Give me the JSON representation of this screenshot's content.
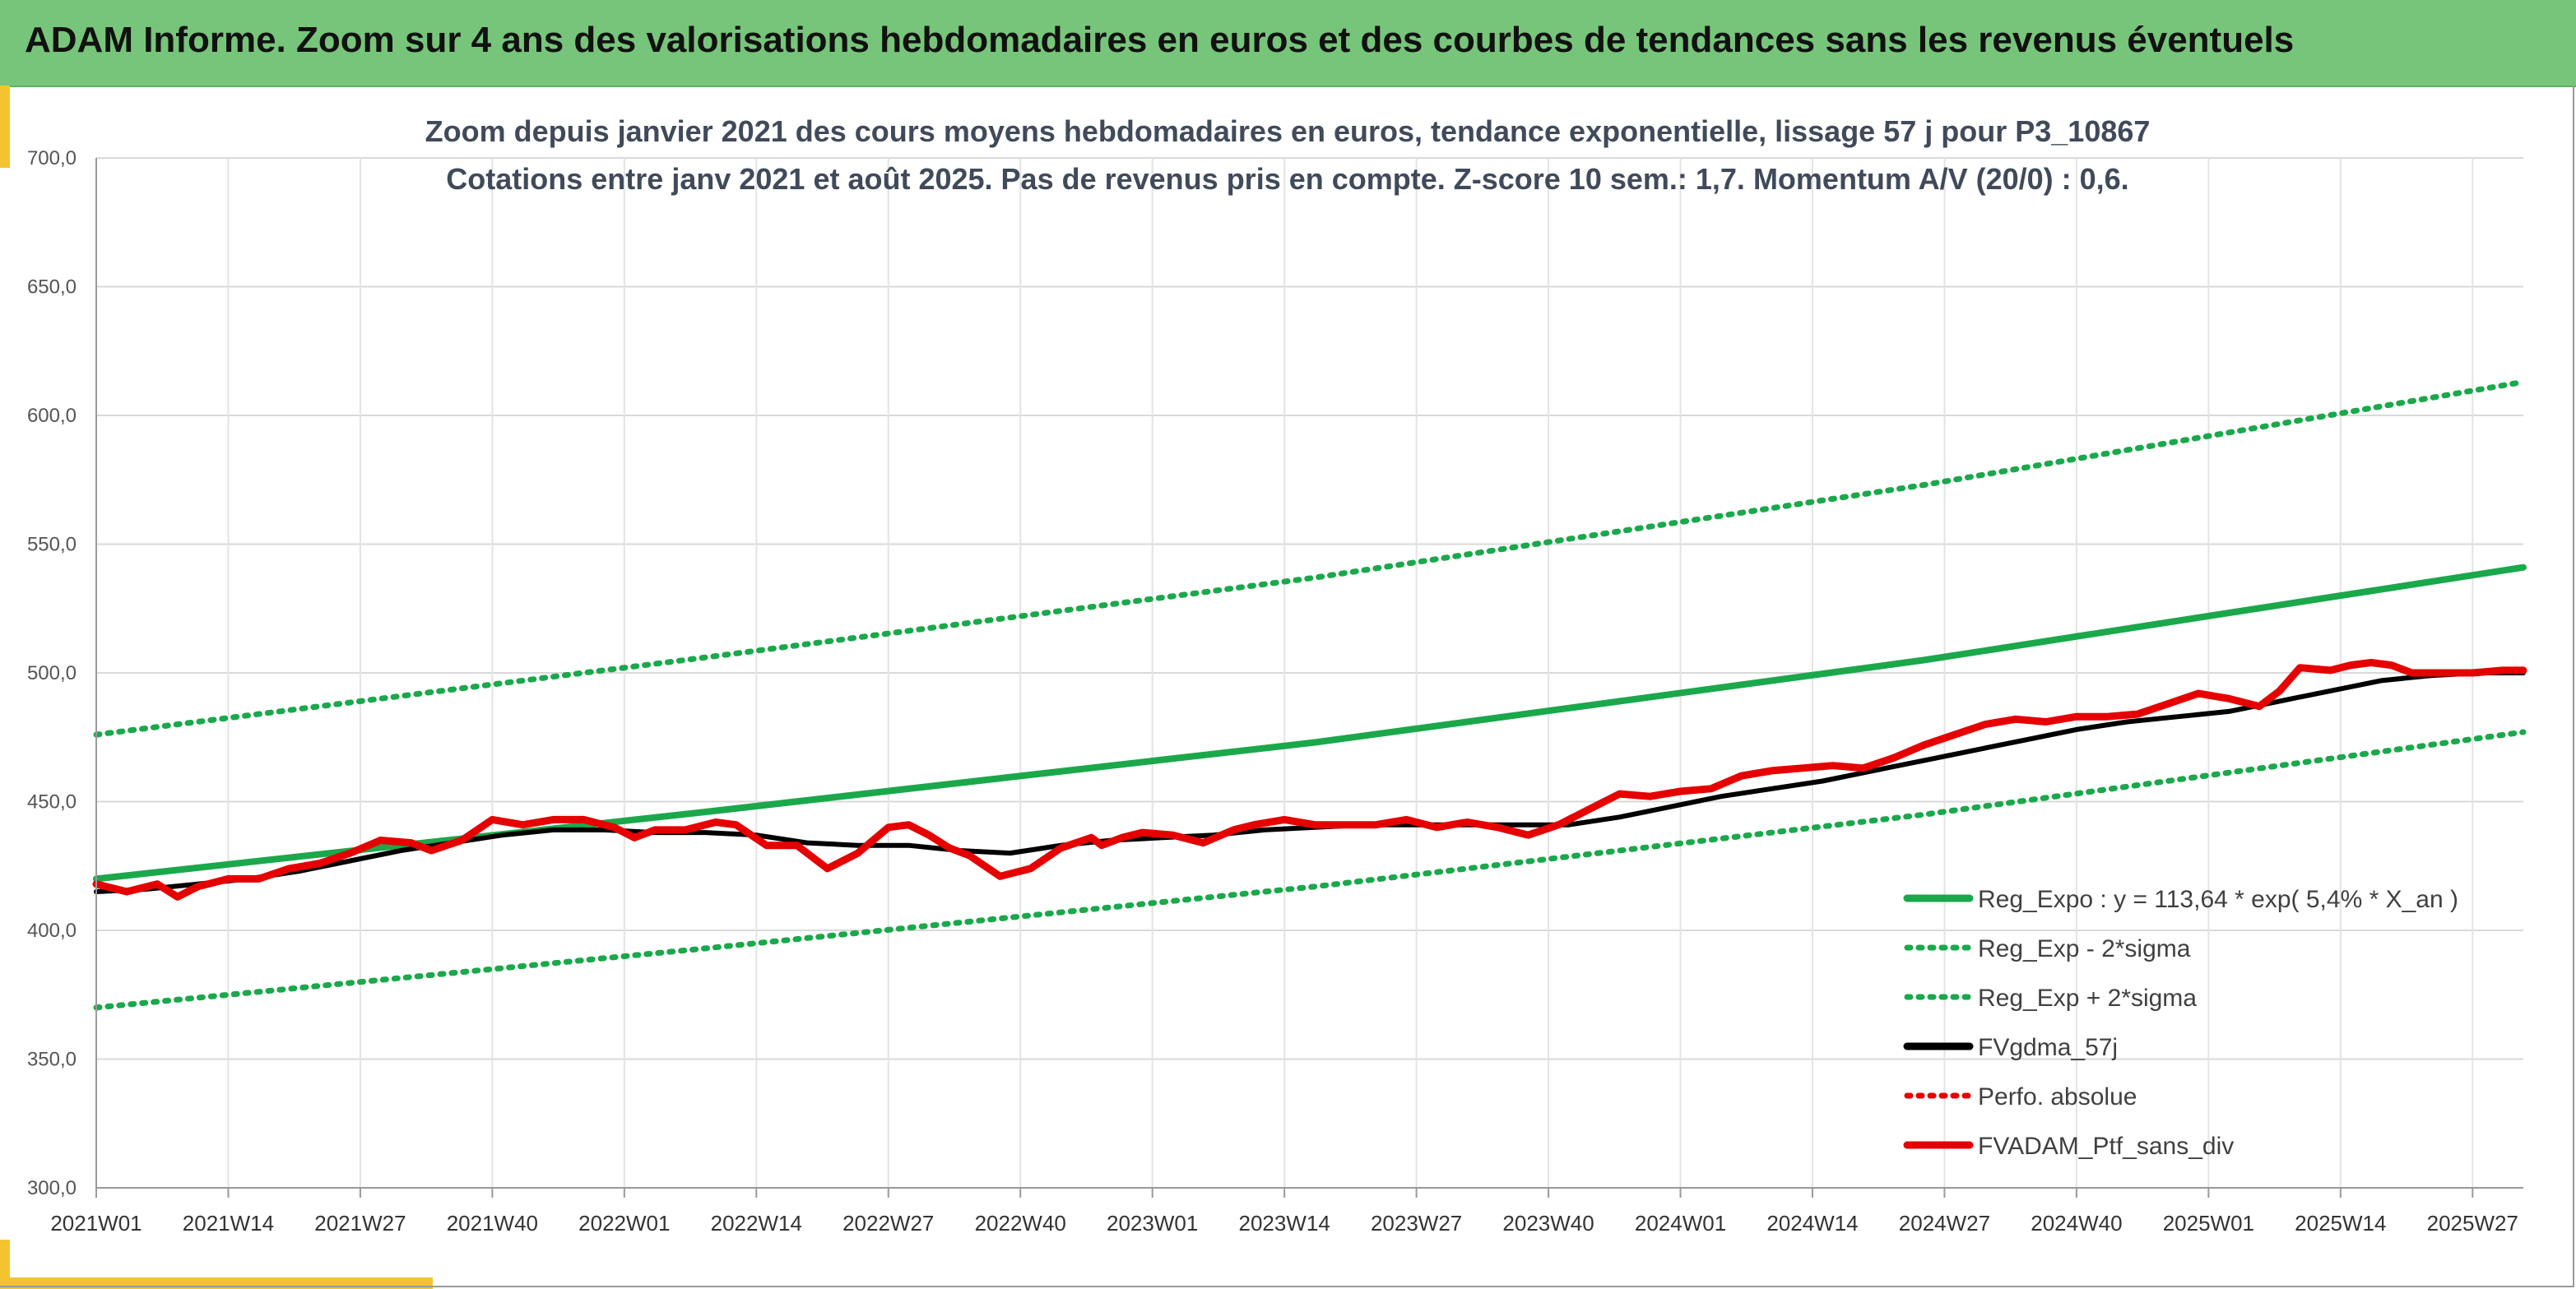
{
  "banner": {
    "title": "ADAM Informe. Zoom sur 4 ans des valorisations hebdomadaires en euros et des courbes de tendances sans les revenus éventuels",
    "color": "#77c57a"
  },
  "chart_data": {
    "type": "line",
    "title": "Zoom depuis janvier 2021 des cours moyens hebdomadaires en euros, tendance exponentielle, lissage 57 j pour P3_10867",
    "subtitle": "Cotations entre janv 2021 et août 2025. Pas de revenus pris en compte. Z-score 10 sem.: 1,7. Momentum A/V (20/0) : 0,6.",
    "xlabel": "",
    "ylabel": "",
    "ylim": [
      300,
      700
    ],
    "yticks": [
      "300,0",
      "350,0",
      "400,0",
      "450,0",
      "500,0",
      "550,0",
      "600,0",
      "650,0",
      "700,0"
    ],
    "xticks": [
      "2021W01",
      "2021W14",
      "2021W27",
      "2021W40",
      "2022W01",
      "2022W14",
      "2022W27",
      "2022W40",
      "2023W01",
      "2023W14",
      "2023W27",
      "2023W40",
      "2024W01",
      "2024W14",
      "2024W27",
      "2024W40",
      "2025W01",
      "2025W14",
      "2025W27"
    ],
    "x_range_weeks": [
      0,
      239
    ],
    "grid": true,
    "legend_position": "bottom-right",
    "series": [
      {
        "name": "Reg_Expo : y = 113,64 * exp( 5,4% *  X_an )",
        "color": "#1aa84b",
        "style": "solid",
        "x": [
          0,
          60,
          120,
          180,
          239
        ],
        "y": [
          420,
          446,
          473,
          505,
          541
        ]
      },
      {
        "name": "Reg_Exp - 2*sigma",
        "color": "#1aa84b",
        "style": "dotted",
        "x": [
          0,
          60,
          120,
          180,
          239
        ],
        "y": [
          370,
          393,
          417,
          445,
          477
        ]
      },
      {
        "name": "Reg_Exp + 2*sigma",
        "color": "#1aa84b",
        "style": "dotted",
        "x": [
          0,
          60,
          120,
          180,
          239
        ],
        "y": [
          476,
          506,
          537,
          573,
          613
        ]
      },
      {
        "name": "FVgdma_57j",
        "color": "#000000",
        "style": "solid",
        "x": [
          0,
          5,
          10,
          15,
          20,
          25,
          30,
          35,
          40,
          45,
          50,
          55,
          60,
          65,
          70,
          75,
          80,
          85,
          90,
          95,
          100,
          105,
          110,
          115,
          120,
          125,
          130,
          135,
          140,
          145,
          150,
          155,
          160,
          165,
          170,
          175,
          180,
          185,
          190,
          195,
          200,
          205,
          210,
          215,
          220,
          225,
          230,
          235,
          239
        ],
        "y": [
          415,
          416,
          418,
          420,
          423,
          427,
          431,
          434,
          437,
          439,
          439,
          438,
          438,
          437,
          434,
          433,
          433,
          431,
          430,
          433,
          435,
          436,
          437,
          439,
          440,
          441,
          441,
          441,
          441,
          441,
          444,
          448,
          452,
          455,
          458,
          462,
          466,
          470,
          474,
          478,
          481,
          483,
          485,
          489,
          493,
          497,
          499,
          500,
          500
        ]
      },
      {
        "name": "Perfo. absolue",
        "color": "#e60000",
        "style": "dotted",
        "x": [],
        "y": []
      },
      {
        "name": "FVADAM_Ptf_sans_div",
        "color": "#e60000",
        "style": "solid",
        "x": [
          0,
          3,
          6,
          8,
          10,
          13,
          16,
          19,
          22,
          25,
          28,
          31,
          33,
          36,
          39,
          42,
          45,
          48,
          51,
          53,
          55,
          58,
          61,
          63,
          66,
          69,
          72,
          75,
          78,
          80,
          82,
          84,
          86,
          89,
          92,
          95,
          98,
          99,
          101,
          103,
          106,
          109,
          112,
          114,
          117,
          120,
          123,
          126,
          129,
          132,
          135,
          138,
          141,
          144,
          147,
          150,
          153,
          156,
          159,
          162,
          165,
          168,
          171,
          174,
          177,
          180,
          183,
          186,
          189,
          192,
          195,
          198,
          201,
          204,
          207,
          210,
          213,
          215,
          217,
          220,
          222,
          224,
          226,
          228,
          231,
          234,
          237,
          239
        ],
        "y": [
          418,
          415,
          418,
          413,
          417,
          420,
          420,
          424,
          426,
          430,
          435,
          434,
          431,
          435,
          443,
          441,
          443,
          443,
          440,
          436,
          439,
          439,
          442,
          441,
          433,
          433,
          424,
          430,
          440,
          441,
          437,
          432,
          429,
          421,
          424,
          432,
          436,
          433,
          436,
          438,
          437,
          434,
          439,
          441,
          443,
          441,
          441,
          441,
          443,
          440,
          442,
          440,
          437,
          441,
          447,
          453,
          452,
          454,
          455,
          460,
          462,
          463,
          464,
          463,
          467,
          472,
          476,
          480,
          482,
          481,
          483,
          483,
          484,
          488,
          492,
          490,
          487,
          493,
          502,
          501,
          503,
          504,
          503,
          500,
          500,
          500,
          501,
          501
        ]
      }
    ]
  }
}
